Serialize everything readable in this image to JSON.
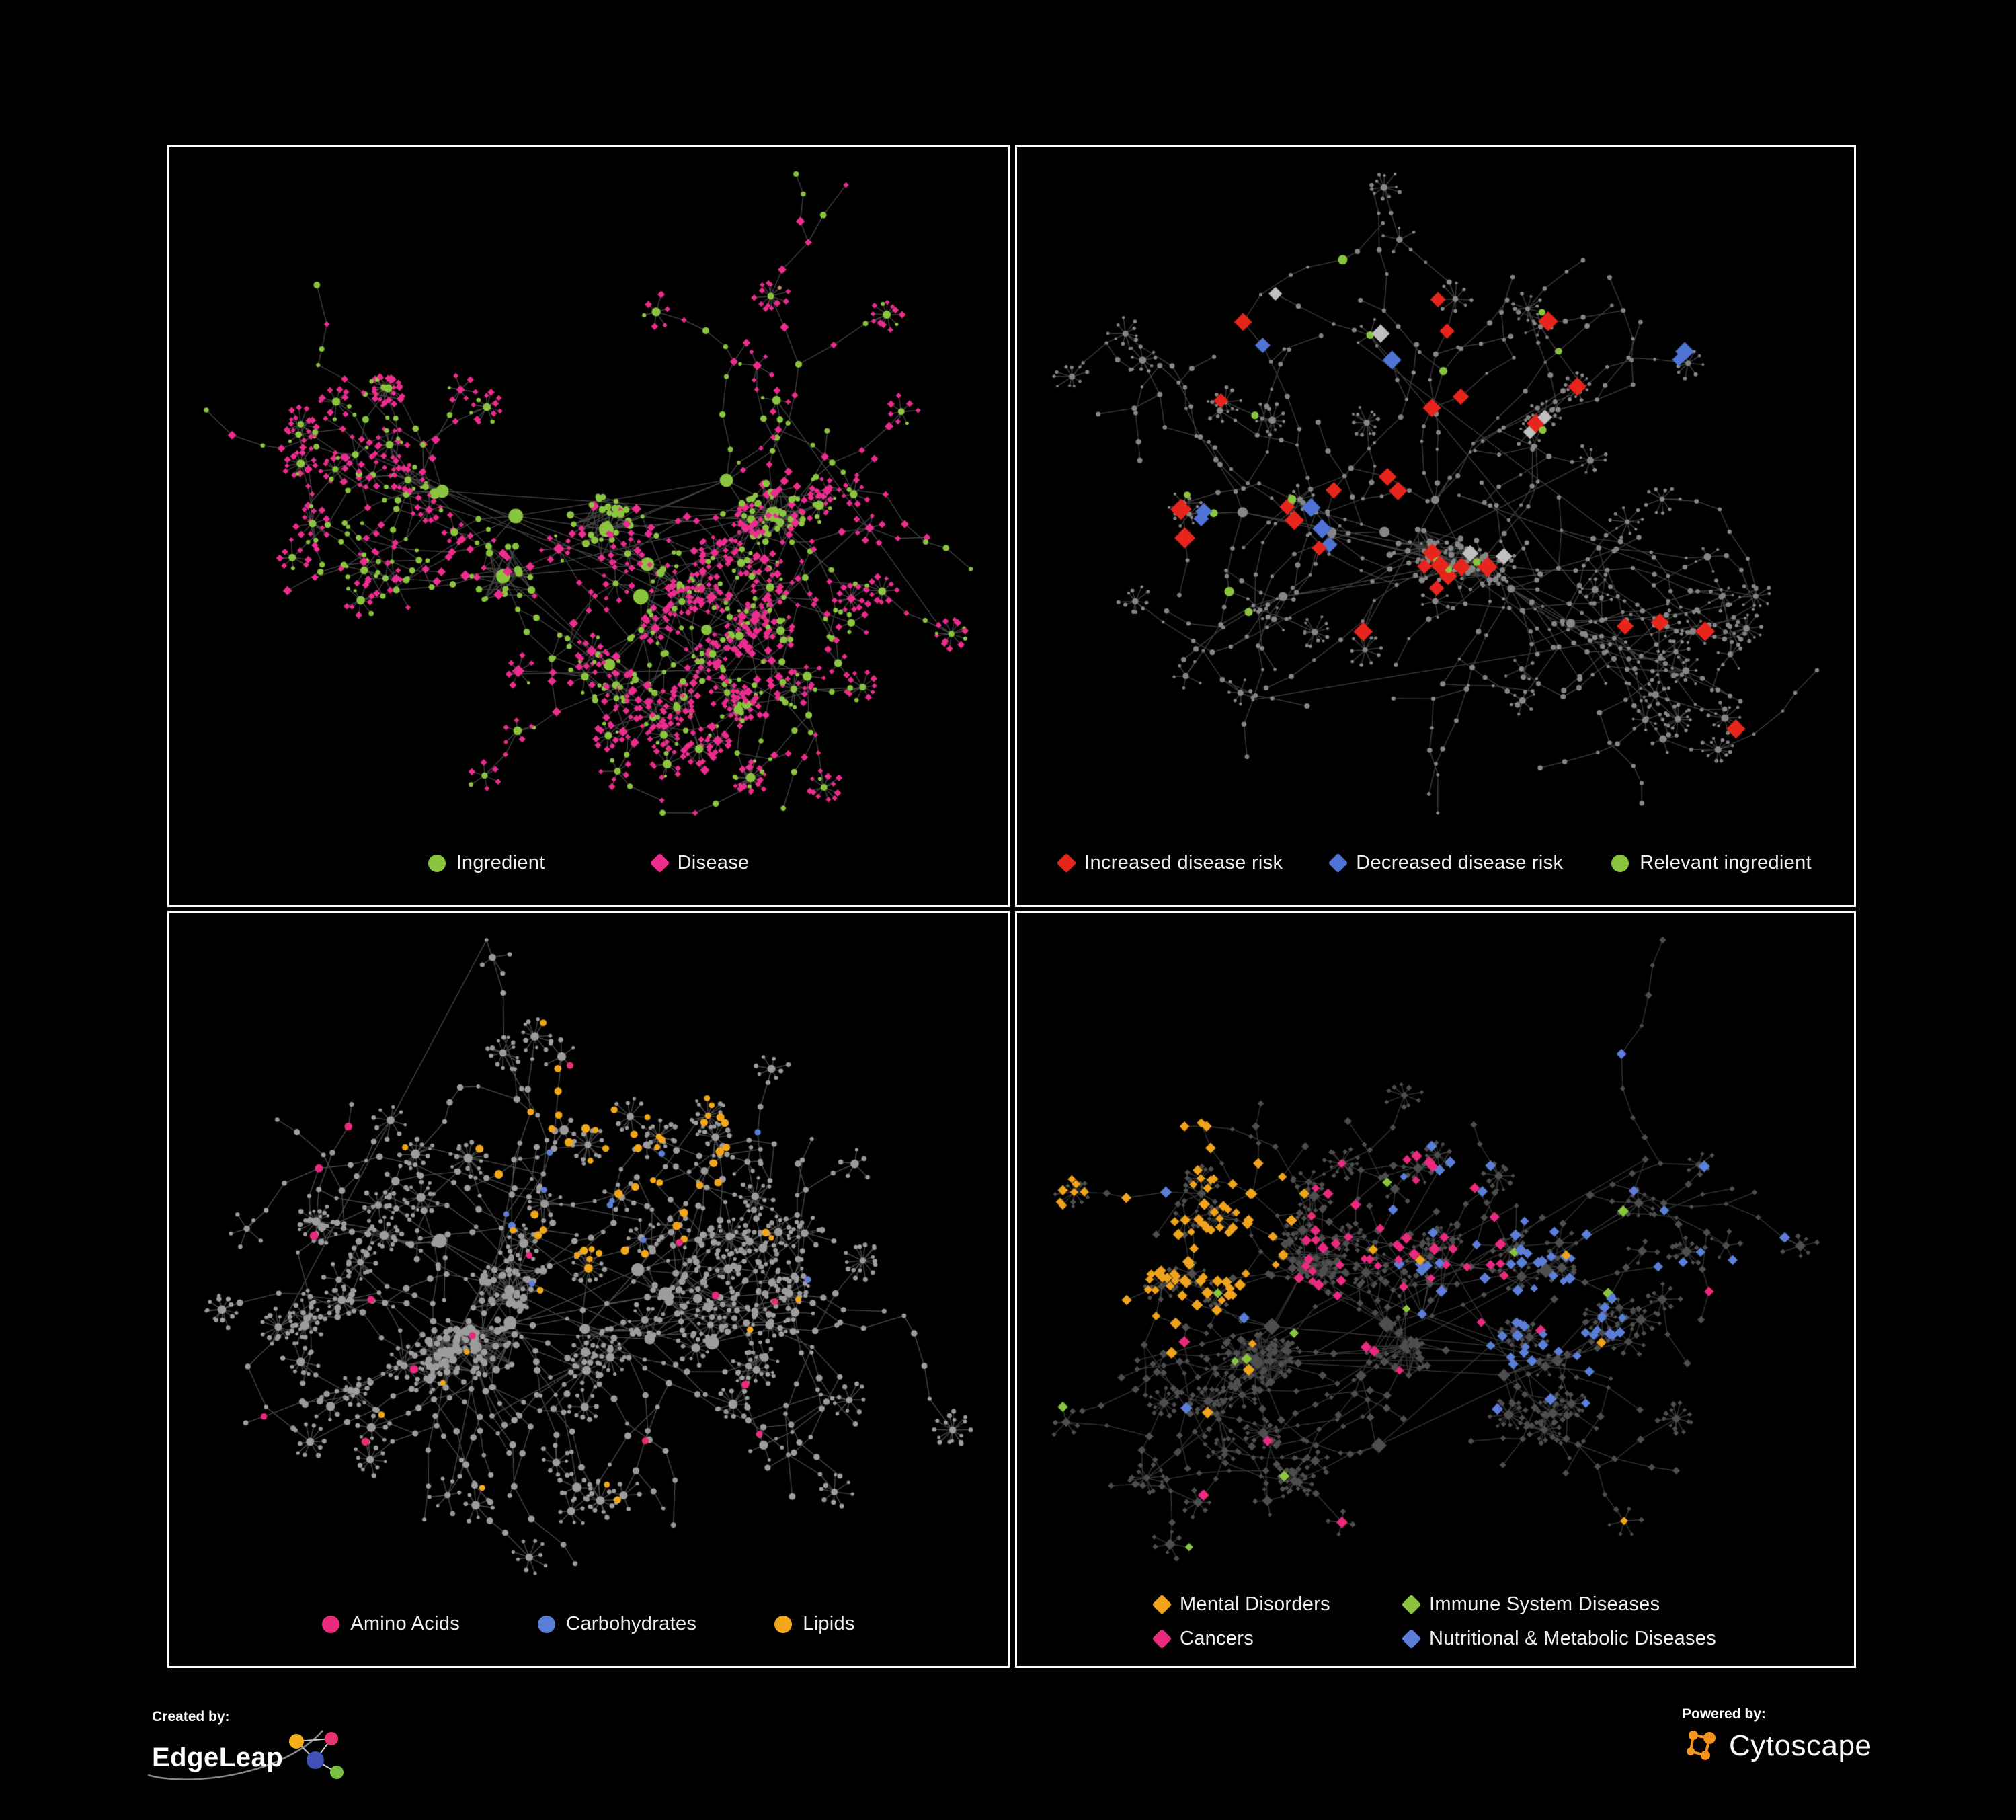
{
  "figure": {
    "background": "#000000",
    "panel_border": "#ffffff"
  },
  "panels": [
    {
      "name": "ingredient-disease-network",
      "legend": [
        {
          "label": "Ingredient",
          "shape": "circle",
          "color": "#8bc53f"
        },
        {
          "label": "Disease",
          "shape": "diamond",
          "color": "#ec2d8e"
        }
      ],
      "net": {
        "seed": 7,
        "mode": "classes",
        "edge_color": "#7d7d7d",
        "gen": {
          "hubs": 11,
          "clusters": 3,
          "branches": 5,
          "chain": 6,
          "burstProb": 0.5,
          "burstMax": 11
        },
        "class_colors": {
          "green": "#8bc53f",
          "pink": "#ec2d8e"
        }
      }
    },
    {
      "name": "disease-risk-network",
      "legend": [
        {
          "label": "Increased disease risk",
          "shape": "diamond",
          "color": "#e8251d"
        },
        {
          "label": "Decreased disease risk",
          "shape": "diamond",
          "color": "#4f74d6"
        },
        {
          "label": "Relevant ingredient",
          "shape": "circle",
          "color": "#8bc53f"
        }
      ],
      "net": {
        "seed": 13,
        "mode": "overlay",
        "edge_color": "#747474",
        "gen": {
          "hubs": 10,
          "clusters": 2,
          "branches": 5,
          "chain": 7,
          "burstProb": 0.4,
          "burstMax": 9
        },
        "base": {
          "color": "#868686",
          "shape": "circle",
          "shrink": 0.8
        },
        "overlays": [
          {
            "color": "#e8251d",
            "shape": "diamond",
            "size": 10,
            "count": 24,
            "focus": [
              0.42,
              0.4
            ],
            "radius": 0.32
          },
          {
            "color": "#e8251d",
            "shape": "diamond",
            "size": 10,
            "count": 3,
            "focus": [
              0.78,
              0.78
            ],
            "radius": 0.12
          },
          {
            "color": "#e8251d",
            "shape": "diamond",
            "size": 10,
            "count": 2
          },
          {
            "color": "#4f74d6",
            "shape": "diamond",
            "size": 9,
            "count": 7,
            "focus": [
              0.33,
              0.42
            ],
            "radius": 0.2
          },
          {
            "color": "#4f74d6",
            "shape": "diamond",
            "size": 9,
            "count": 2,
            "focus": [
              0.86,
              0.26
            ],
            "radius": 0.1
          },
          {
            "color": "#c0c0c0",
            "shape": "diamond",
            "size": 9,
            "count": 6,
            "focus": [
              0.42,
              0.47
            ],
            "radius": 0.3
          },
          {
            "color": "#8bc53f",
            "shape": "circle",
            "size": 6,
            "count": 15,
            "focus": [
              0.4,
              0.4
            ],
            "radius": 0.38
          }
        ]
      }
    },
    {
      "name": "nutrient-class-network",
      "legend": [
        {
          "label": "Amino Acids",
          "shape": "circle",
          "color": "#ea2a7e"
        },
        {
          "label": "Carbohydrates",
          "shape": "circle",
          "color": "#5b7fd8"
        },
        {
          "label": "Lipids",
          "shape": "circle",
          "color": "#f2a71b"
        }
      ],
      "net": {
        "seed": 29,
        "mode": "overlay",
        "edge_color": "#8a8a8a",
        "gen": {
          "hubs": 12,
          "clusters": 3,
          "branches": 5,
          "chain": 6,
          "burstProb": 0.5,
          "burstMax": 13
        },
        "base": {
          "color": "#9c9c9c",
          "shape": "circle",
          "shrink": 1.0
        },
        "overlays": [
          {
            "color": "#f2a71b",
            "shape": "circle",
            "size": 5.5,
            "count": 48,
            "focus": [
              0.52,
              0.33
            ],
            "radius": 0.2
          },
          {
            "color": "#f2a71b",
            "shape": "circle",
            "size": 5,
            "count": 14
          },
          {
            "color": "#5b7fd8",
            "shape": "circle",
            "size": 5,
            "count": 9,
            "focus": [
              0.47,
              0.42
            ],
            "radius": 0.16
          },
          {
            "color": "#5b7fd8",
            "shape": "circle",
            "size": 5,
            "count": 2
          },
          {
            "color": "#ea2a7e",
            "shape": "circle",
            "size": 5.5,
            "count": 16
          }
        ]
      }
    },
    {
      "name": "disease-category-network",
      "legend": [
        {
          "label": "Mental Disorders",
          "shape": "diamond",
          "color": "#f0a31d"
        },
        {
          "label": "Immune System Diseases",
          "shape": "diamond",
          "color": "#8bc53f"
        },
        {
          "label": "Cancers",
          "shape": "diamond",
          "color": "#ea2a7e"
        },
        {
          "label": "Nutritional & Metabolic Diseases",
          "shape": "diamond",
          "color": "#5b7fd8"
        }
      ],
      "net": {
        "seed": 47,
        "mode": "overlay",
        "edge_color": "#666666",
        "gen": {
          "hubs": 12,
          "clusters": 3,
          "branches": 5,
          "chain": 6,
          "burstProb": 0.5,
          "burstMax": 12
        },
        "base": {
          "color": "#4e4e4e",
          "shape": "diamond",
          "shrink": 0.9
        },
        "overlays": [
          {
            "color": "#f0a31d",
            "shape": "diamond",
            "size": 5.5,
            "count": 80,
            "focus": [
              0.19,
              0.44
            ],
            "radius": 0.18
          },
          {
            "color": "#f0a31d",
            "shape": "diamond",
            "size": 5.5,
            "count": 12
          },
          {
            "color": "#ea2a7e",
            "shape": "diamond",
            "size": 5.5,
            "count": 50,
            "focus": [
              0.46,
              0.52
            ],
            "radius": 0.17
          },
          {
            "color": "#ea2a7e",
            "shape": "diamond",
            "size": 5.5,
            "count": 8
          },
          {
            "color": "#5b7fd8",
            "shape": "diamond",
            "size": 5.5,
            "count": 34,
            "focus": [
              0.64,
              0.56
            ],
            "radius": 0.12
          },
          {
            "color": "#5b7fd8",
            "shape": "diamond",
            "size": 5.5,
            "count": 38,
            "focus": [
              0.74,
              0.34
            ],
            "radius": 0.42
          },
          {
            "color": "#5b7fd8",
            "shape": "diamond",
            "size": 5.5,
            "count": 6
          },
          {
            "color": "#8bc53f",
            "shape": "diamond",
            "size": 5.5,
            "count": 12
          }
        ]
      }
    }
  ],
  "footer": {
    "created_by": "Created by:",
    "brand": "EdgeLeap",
    "powered_by": "Powered by:",
    "engine": "Cytoscape"
  }
}
